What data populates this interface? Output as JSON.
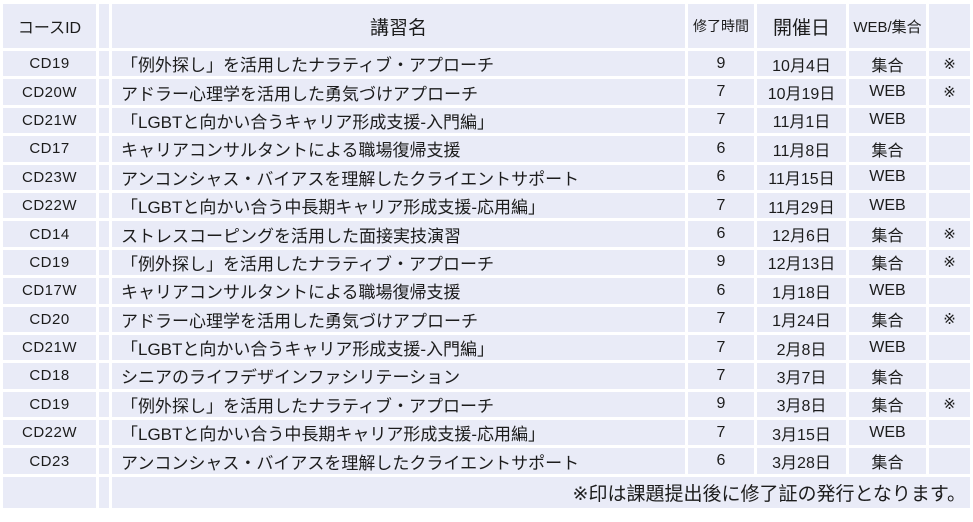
{
  "table": {
    "headers": {
      "course_id": "コースID",
      "course_name": "講習名",
      "hours": "修了時間",
      "date": "開催日",
      "format": "WEB/集合",
      "note": ""
    },
    "rows": [
      {
        "id": "CD19",
        "name": "「例外探し」を活用したナラティブ・アプローチ",
        "hours": "9",
        "date": "10月4日",
        "format": "集合",
        "note": "※"
      },
      {
        "id": "CD20W",
        "name": "アドラー心理学を活用した勇気づけアプローチ",
        "hours": "7",
        "date": "10月19日",
        "format": "WEB",
        "note": "※"
      },
      {
        "id": "CD21W",
        "name": "「LGBTと向かい合うキャリア形成支援-入門編」",
        "hours": "7",
        "date": "11月1日",
        "format": "WEB",
        "note": ""
      },
      {
        "id": "CD17",
        "name": "キャリアコンサルタントによる職場復帰支援",
        "hours": "6",
        "date": "11月8日",
        "format": "集合",
        "note": ""
      },
      {
        "id": "CD23W",
        "name": "アンコンシャス・バイアスを理解したクライエントサポート",
        "hours": "6",
        "date": "11月15日",
        "format": "WEB",
        "note": ""
      },
      {
        "id": "CD22W",
        "name": "「LGBTと向かい合う中長期キャリア形成支援-応用編」",
        "hours": "7",
        "date": "11月29日",
        "format": "WEB",
        "note": ""
      },
      {
        "id": "CD14",
        "name": "ストレスコーピングを活用した面接実技演習",
        "hours": "6",
        "date": "12月6日",
        "format": "集合",
        "note": "※"
      },
      {
        "id": "CD19",
        "name": "「例外探し」を活用したナラティブ・アプローチ",
        "hours": "9",
        "date": "12月13日",
        "format": "集合",
        "note": "※"
      },
      {
        "id": "CD17W",
        "name": "キャリアコンサルタントによる職場復帰支援",
        "hours": "6",
        "date": "1月18日",
        "format": "WEB",
        "note": ""
      },
      {
        "id": "CD20",
        "name": "アドラー心理学を活用した勇気づけアプローチ",
        "hours": "7",
        "date": "1月24日",
        "format": "集合",
        "note": "※"
      },
      {
        "id": "CD21W",
        "name": "「LGBTと向かい合うキャリア形成支援-入門編」",
        "hours": "7",
        "date": "2月8日",
        "format": "WEB",
        "note": ""
      },
      {
        "id": "CD18",
        "name": "シニアのライフデザインファシリテーション",
        "hours": "7",
        "date": "3月7日",
        "format": "集合",
        "note": ""
      },
      {
        "id": "CD19",
        "name": "「例外探し」を活用したナラティブ・アプローチ",
        "hours": "9",
        "date": "3月8日",
        "format": "集合",
        "note": "※"
      },
      {
        "id": "CD22W",
        "name": "「LGBTと向かい合う中長期キャリア形成支援-応用編」",
        "hours": "7",
        "date": "3月15日",
        "format": "WEB",
        "note": ""
      },
      {
        "id": "CD23",
        "name": "アンコンシャス・バイアスを理解したクライエントサポート",
        "hours": "6",
        "date": "3月28日",
        "format": "集合",
        "note": ""
      }
    ],
    "footer_note": "※印は課題提出後に修了証の発行となります。"
  },
  "colors": {
    "cell_background": "#e9ebf7",
    "grid_lines": "#ffffff",
    "text": "#1c1c1c"
  }
}
